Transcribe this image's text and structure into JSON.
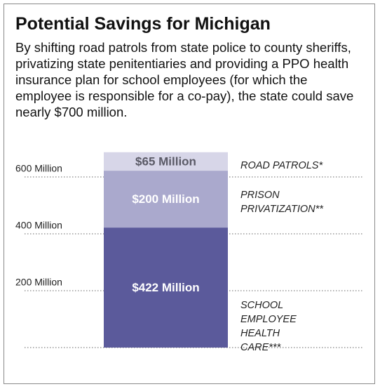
{
  "chart_data": {
    "type": "bar",
    "stacked": true,
    "title": "Potential Savings for Michigan",
    "subtitle": "By shifting road patrols from state police to county sheriffs, privatizing state penitentiaries and providing a PPO health insurance plan for school employees (for which the employee is responsible for a co-pay), the state could save nearly $700 million.",
    "categories": [
      null
    ],
    "series": [
      {
        "name": "SCHOOL EMPLOYEE HEALTH CARE***",
        "color": "#5b5a9b",
        "values": [
          422
        ],
        "value_labels": [
          "$422 Million"
        ]
      },
      {
        "name": "PRISON PRIVATIZATION**",
        "color": "#aaa9cd",
        "values": [
          200
        ],
        "value_labels": [
          "$200 Million"
        ]
      },
      {
        "name": "ROAD PATROLS*",
        "color": "#d7d6e8",
        "values": [
          65
        ],
        "value_labels": [
          "$65 Million"
        ]
      }
    ],
    "ylim": [
      0,
      700
    ],
    "yticks": [
      {
        "value": 200,
        "label": "200 Million"
      },
      {
        "value": 400,
        "label": "400 Million"
      },
      {
        "value": 600,
        "label": "600 Million"
      }
    ],
    "grid": true
  }
}
